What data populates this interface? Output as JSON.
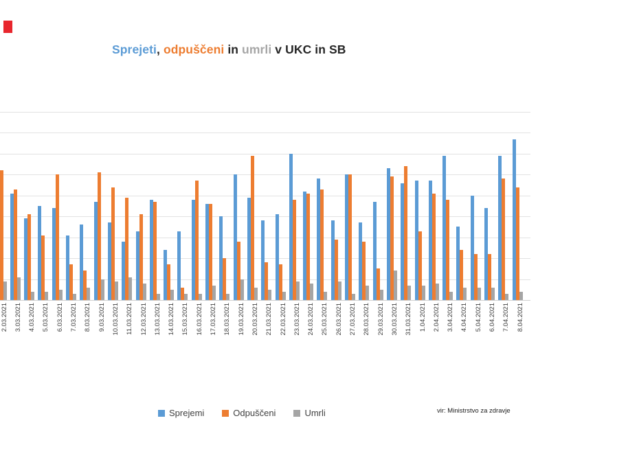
{
  "marker": {
    "color": "#e8262d"
  },
  "title": {
    "parts": [
      {
        "text": "Sprejeti",
        "color": "#5b9bd5"
      },
      {
        "text": ", ",
        "color": "#262626"
      },
      {
        "text": "odpuščeni",
        "color": "#ed7d31"
      },
      {
        "text": " in ",
        "color": "#262626"
      },
      {
        "text": "umrli",
        "color": "#a6a6a6"
      },
      {
        "text": " v UKC in SB",
        "color": "#262626"
      }
    ]
  },
  "legend": [
    {
      "label": "Sprejemi",
      "color": "#5b9bd5"
    },
    {
      "label": "Odpuščeni",
      "color": "#ed7d31"
    },
    {
      "label": "Umrli",
      "color": "#a5a5a5"
    }
  ],
  "source": "vir: Ministrstvo za zdravje",
  "chart_data": {
    "type": "bar",
    "title": "Sprejeti, odpuščeni in umrli v UKC in SB",
    "xlabel": "",
    "ylabel": "",
    "ylim": [
      0,
      90
    ],
    "gridline_step": 10,
    "grid": true,
    "legend_position": "bottom",
    "y_axis_labels_visible": false,
    "note_first_category": "blue bar of 2.03.2021 cropped out of frame; value not visible",
    "categories": [
      "2.03.2021",
      "3.03.2021",
      "4.03.2021",
      "5.03.2021",
      "6.03.2021",
      "7.03.2021",
      "8.03.2021",
      "9.03.2021",
      "10.03.2021",
      "11.03.2021",
      "12.03.2021",
      "13.03.2021",
      "14.03.2021",
      "15.03.2021",
      "16.03.2021",
      "17.03.2021",
      "18.03.2021",
      "19.03.2021",
      "20.03.2021",
      "21.03.2021",
      "22.03.2021",
      "23.03.2021",
      "24.03.2021",
      "25.03.2021",
      "26.03.2021",
      "27.03.2021",
      "28.03.2021",
      "29.03.2021",
      "30.03.2021",
      "31.03.2021",
      "1.04.2021",
      "2.04.2021",
      "3.04.2021",
      "4.04.2021",
      "5.04.2021",
      "6.04.2021",
      "7.04.2021",
      "8.04.2021"
    ],
    "series": [
      {
        "name": "Sprejemi",
        "color": "#5b9bd5",
        "values": [
          null,
          51,
          39,
          45,
          44,
          31,
          36,
          47,
          37,
          28,
          33,
          48,
          24,
          33,
          48,
          46,
          40,
          60,
          49,
          38,
          41,
          70,
          52,
          58,
          38,
          60,
          37,
          47,
          63,
          56,
          57,
          57,
          69,
          35,
          50,
          44,
          69,
          77
        ]
      },
      {
        "name": "Odpuščeni",
        "color": "#ed7d31",
        "values": [
          62,
          53,
          41,
          31,
          60,
          17,
          14,
          61,
          54,
          49,
          41,
          47,
          17,
          6,
          57,
          46,
          20,
          28,
          69,
          18,
          17,
          48,
          51,
          53,
          29,
          60,
          28,
          15,
          59,
          64,
          33,
          51,
          48,
          24,
          22,
          22,
          58,
          54
        ]
      },
      {
        "name": "Umrli",
        "color": "#a5a5a5",
        "values": [
          9,
          11,
          4,
          4,
          5,
          3,
          6,
          10,
          9,
          11,
          8,
          3,
          5,
          3,
          3,
          7,
          3,
          10,
          6,
          5,
          4,
          9,
          8,
          4,
          9,
          3,
          7,
          5,
          14,
          7,
          7,
          8,
          4,
          6,
          6,
          6,
          3,
          4
        ]
      }
    ]
  }
}
